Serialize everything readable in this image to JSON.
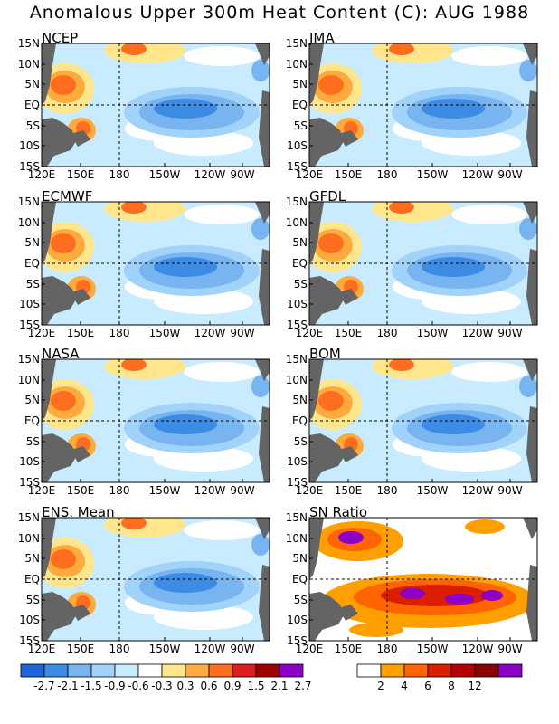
{
  "title": "Anomalous Upper 300m Heat Content (C): AUG 1988",
  "lat_labels": [
    "15N",
    "10N",
    "5N",
    "EQ",
    "5S",
    "10S",
    "15S"
  ],
  "lon_labels": [
    "120E",
    "150E",
    "180",
    "150W",
    "120W",
    "90W"
  ],
  "panels": [
    {
      "name": "NCEP"
    },
    {
      "name": "JMA"
    },
    {
      "name": "ECMWF"
    },
    {
      "name": "GFDL"
    },
    {
      "name": "NASA"
    },
    {
      "name": "BOM"
    },
    {
      "name": "ENS. Mean"
    },
    {
      "name": "SN Ratio"
    }
  ],
  "colorbar_anomaly": {
    "colors": [
      "#1e64dc",
      "#3c8ce6",
      "#78b4f0",
      "#a0d2fa",
      "#c8ebff",
      "#ffffff",
      "#ffe68c",
      "#ffaa3c",
      "#ff6e1e",
      "#dc1e1e",
      "#a00000",
      "#8c00c8"
    ],
    "labels": [
      "-2.7",
      "-2.1",
      "-1.5",
      "-0.9",
      "-0.6",
      "-0.3",
      "0.3",
      "0.6",
      "0.9",
      "1.5",
      "2.1",
      "2.7"
    ]
  },
  "colorbar_sn": {
    "colors": [
      "#ffffff",
      "#ffa000",
      "#ff6400",
      "#dc1e00",
      "#b40000",
      "#8c0000",
      "#8c00c8"
    ],
    "labels": [
      "2",
      "4",
      "6",
      "8",
      "12"
    ]
  },
  "colors": {
    "land": "#646464",
    "background": "#ffffff"
  }
}
